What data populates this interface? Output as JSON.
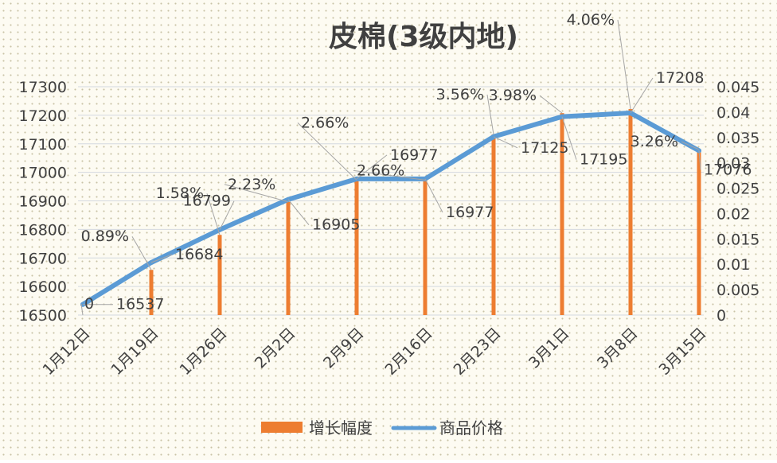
{
  "chart_data": {
    "type": "bar+line",
    "title": "皮棉(3级内地)",
    "categories": [
      "1月12日",
      "1月19日",
      "1月26日",
      "2月2日",
      "2月9日",
      "2月16日",
      "2月23日",
      "3月1日",
      "3月8日",
      "3月15日"
    ],
    "series": [
      {
        "name": "增长幅度",
        "type": "bar",
        "axis": "right",
        "values": [
          0,
          0.0089,
          0.0158,
          0.0223,
          0.0266,
          0.0266,
          0.0356,
          0.0398,
          0.0406,
          0.0326
        ],
        "labels": [
          "0",
          "0.89%",
          "1.58%",
          "2.23%",
          "2.66%",
          "2.66%",
          "3.56%",
          "3.98%",
          "4.06%",
          "3.26%"
        ]
      },
      {
        "name": "商品价格",
        "type": "line",
        "axis": "left",
        "values": [
          16537,
          16684,
          16799,
          16905,
          16977,
          16977,
          17125,
          17195,
          17208,
          17076
        ],
        "labels": [
          "16537",
          "16684",
          "16799",
          "16905",
          "16977",
          "16977",
          "17125",
          "17195",
          "17208",
          "17076"
        ]
      }
    ],
    "y_left": {
      "min": 16500,
      "max": 17300,
      "ticks": [
        "16500",
        "16600",
        "16700",
        "16800",
        "16900",
        "17000",
        "17100",
        "17200",
        "17300"
      ]
    },
    "y_right": {
      "min": 0,
      "max": 0.045,
      "ticks": [
        "0",
        "0.005",
        "0.01",
        "0.015",
        "0.02",
        "0.025",
        "0.03",
        "0.035",
        "0.04",
        "0.045"
      ]
    },
    "grid": true,
    "legend_position": "bottom",
    "colors": {
      "bar": "#ed7d31",
      "line": "#5b9bd5",
      "grid": "#d4d9e0",
      "text": "#404040",
      "title": "#404040",
      "leader": "#a5a5a5"
    }
  }
}
